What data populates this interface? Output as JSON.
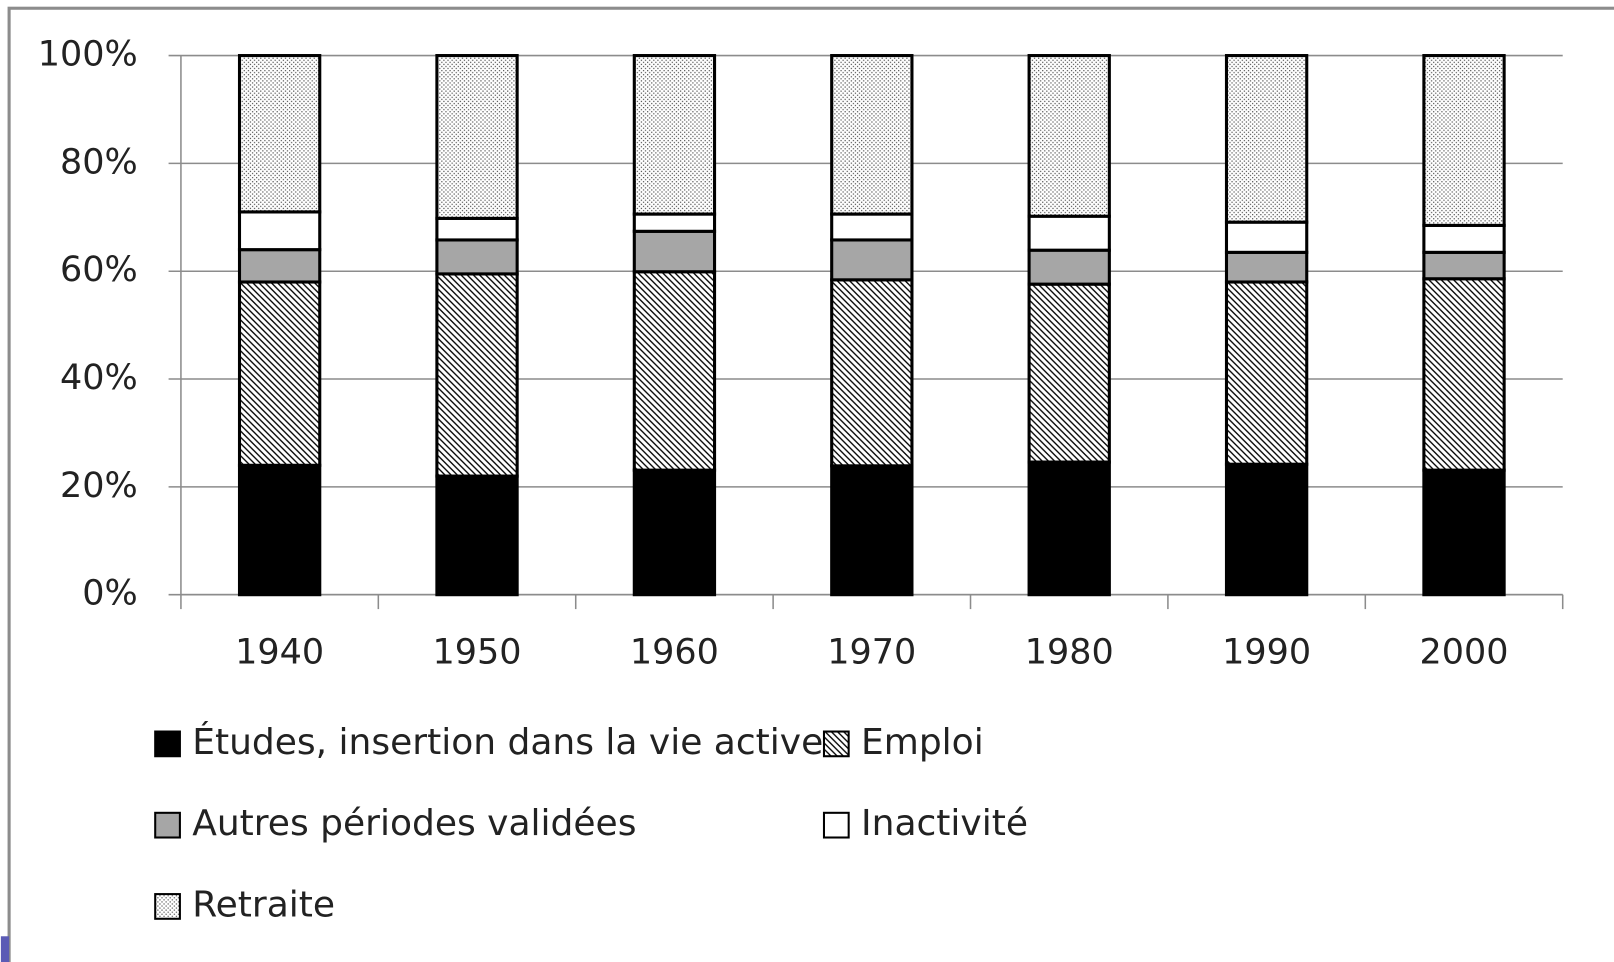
{
  "chart_data": {
    "type": "stacked_bar",
    "categories": [
      "1940",
      "1950",
      "1960",
      "1970",
      "1980",
      "1990",
      "2000"
    ],
    "series": [
      {
        "name": "Études, insertion dans la vie active",
        "color": "#000000",
        "pattern": "solid",
        "values": [
          24,
          22,
          23.1,
          23.9,
          24.6,
          24.2,
          23.1
        ]
      },
      {
        "name": "Emploi",
        "color": "#ffffff",
        "pattern": "hatch",
        "values": [
          34,
          37.5,
          36.8,
          34.5,
          33,
          33.8,
          35.5
        ]
      },
      {
        "name": "Autres périodes validées",
        "color": "#a6a6a6",
        "pattern": "solid",
        "values": [
          6,
          6.3,
          7.5,
          7.4,
          6.3,
          5.5,
          4.9
        ]
      },
      {
        "name": "Inactivité",
        "color": "#ffffff",
        "pattern": "solid",
        "values": [
          7,
          4,
          3.2,
          4.8,
          6.3,
          5.6,
          5
        ]
      },
      {
        "name": "Retraite",
        "color": "#ffffff",
        "pattern": "dots",
        "values": [
          29,
          30.2,
          29.4,
          29.4,
          29.8,
          30.9,
          31.5
        ]
      }
    ],
    "ylim": [
      0,
      100
    ],
    "yticks": [
      {
        "value": 0,
        "label": "0%"
      },
      {
        "value": 20,
        "label": "20%"
      },
      {
        "value": 40,
        "label": "40%"
      },
      {
        "value": 60,
        "label": "60%"
      },
      {
        "value": 80,
        "label": "80%"
      },
      {
        "value": 100,
        "label": "100%"
      }
    ],
    "grid": true
  }
}
